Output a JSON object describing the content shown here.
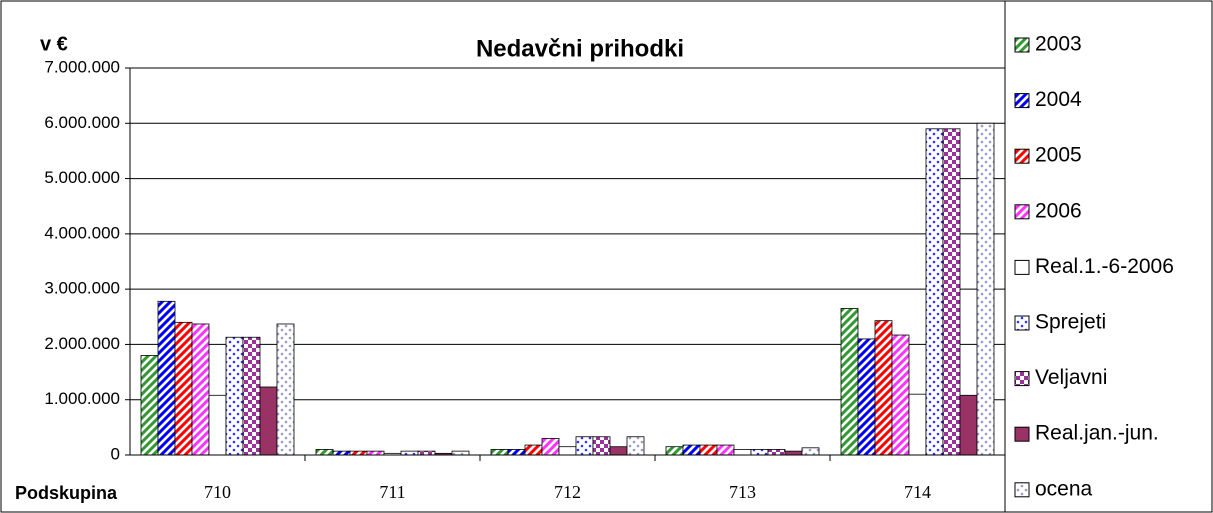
{
  "chart_data": {
    "type": "bar",
    "title": "Nedavčni prihodki",
    "y_label": "v €",
    "x_label": "Podskupina",
    "categories": [
      "710",
      "711",
      "712",
      "713",
      "714"
    ],
    "series": [
      {
        "name": "2003",
        "color": "#339933",
        "pattern": "diag",
        "values": [
          1800000,
          100000,
          100000,
          150000,
          2650000
        ]
      },
      {
        "name": "2004",
        "color": "#0000ff",
        "pattern": "diag",
        "values": [
          2780000,
          70000,
          100000,
          180000,
          2100000
        ]
      },
      {
        "name": "2005",
        "color": "#ff0000",
        "pattern": "diag",
        "values": [
          2400000,
          70000,
          180000,
          180000,
          2430000
        ]
      },
      {
        "name": "2006",
        "color": "#ff33ff",
        "pattern": "diag",
        "values": [
          2370000,
          70000,
          300000,
          180000,
          2170000
        ]
      },
      {
        "name": "Real.1.-6-2006",
        "color": "#ffffff",
        "pattern": "solid",
        "values": [
          1080000,
          30000,
          150000,
          100000,
          1100000
        ]
      },
      {
        "name": "Sprejeti",
        "color": "#3333ff",
        "pattern": "dots",
        "values": [
          2130000,
          70000,
          330000,
          100000,
          5900000
        ]
      },
      {
        "name": "Veljavni",
        "color": "#993399",
        "pattern": "check",
        "values": [
          2130000,
          70000,
          330000,
          100000,
          5900000
        ]
      },
      {
        "name": "Real.jan.-jun.",
        "color": "#993366",
        "pattern": "solid",
        "values": [
          1230000,
          30000,
          150000,
          70000,
          1080000
        ]
      },
      {
        "name": "ocena",
        "color": "#9999cc",
        "pattern": "dots",
        "values": [
          2370000,
          70000,
          330000,
          130000,
          6000000
        ]
      }
    ],
    "ylim": [
      0,
      7000000
    ],
    "yticks": [
      0,
      {
        "value": 1000000,
        "label": "1.000.000"
      },
      {
        "value": 2000000,
        "label": "2.000.000"
      },
      {
        "value": 3000000,
        "label": "3.000.000"
      },
      {
        "value": 4000000,
        "label": "4.000.000"
      },
      {
        "value": 5000000,
        "label": "5.000.000"
      },
      {
        "value": 6000000,
        "label": "6.000.000"
      },
      {
        "value": 7000000,
        "label": "7.000.000"
      }
    ],
    "grid": true,
    "legend": "right"
  }
}
